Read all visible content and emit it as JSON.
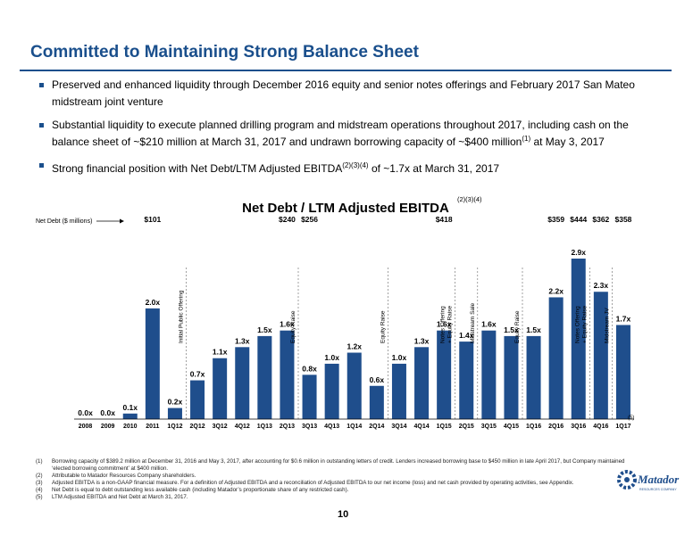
{
  "title": "Committed to Maintaining Strong Balance Sheet",
  "bullets": [
    {
      "text": "Preserved and enhanced liquidity through December 2016 equity and senior notes offerings and February 2017 San Mateo midstream joint venture",
      "sup": "",
      "tail": ""
    },
    {
      "text": "Substantial liquidity to execute planned drilling program and midstream operations throughout 2017, including cash on the balance sheet of ~$210 million at March 31, 2017 and undrawn borrowing capacity of ~$400 million",
      "sup": "(1)",
      "tail": " at May 3, 2017"
    },
    {
      "text": "Strong financial position with Net Debt/LTM Adjusted EBITDA",
      "sup": "(2)(3)(4)",
      "tail": " of ~1.7x at March 31, 2017"
    }
  ],
  "chart_data": {
    "type": "bar",
    "title": "Net Debt / LTM Adjusted EBITDA",
    "title_sup": "(2)(3)(4)",
    "net_debt_label": "Net Debt ($ millions)",
    "categories": [
      "2008",
      "2009",
      "2010",
      "2011",
      "1Q12",
      "2Q12",
      "3Q12",
      "4Q12",
      "1Q13",
      "2Q13",
      "3Q13",
      "4Q13",
      "1Q14",
      "2Q14",
      "3Q14",
      "4Q14",
      "1Q15",
      "2Q15",
      "3Q15",
      "4Q15",
      "1Q16",
      "2Q16",
      "3Q16",
      "4Q16",
      "1Q17"
    ],
    "values": [
      0.0,
      0.0,
      0.1,
      2.0,
      0.2,
      0.7,
      1.1,
      1.3,
      1.5,
      1.6,
      0.8,
      1.0,
      1.2,
      0.6,
      1.0,
      1.3,
      1.6,
      1.4,
      1.6,
      1.5,
      1.5,
      2.2,
      2.9,
      2.3,
      1.7
    ],
    "value_labels": [
      "0.0x",
      "0.0x",
      "0.1x",
      "2.0x",
      "0.2x",
      "0.7x",
      "1.1x",
      "1.3x",
      "1.5x",
      "1.6x",
      "0.8x",
      "1.0x",
      "1.2x",
      "0.6x",
      "1.0x",
      "1.3x",
      "1.6x",
      "1.4x",
      "1.6x",
      "1.5x",
      "1.5x",
      "2.2x",
      "2.9x",
      "2.3x",
      "1.7x"
    ],
    "net_debt": [
      {
        "category": "2011",
        "label": "$101"
      },
      {
        "category": "2Q13",
        "label": "$240"
      },
      {
        "category": "3Q13",
        "label": "$256"
      },
      {
        "category": "1Q15",
        "label": "$418"
      },
      {
        "category": "2Q16",
        "label": "$359"
      },
      {
        "category": "3Q16",
        "label": "$444"
      },
      {
        "category": "4Q16",
        "label": "$362"
      },
      {
        "category": "1Q17",
        "label": "$358"
      }
    ],
    "annotations": [
      {
        "after": "1Q12",
        "text": [
          "Initial Public Offering"
        ]
      },
      {
        "after": "2Q13",
        "text": [
          "Equity Raise"
        ]
      },
      {
        "after": "2Q14",
        "text": [
          "Equity Raise"
        ]
      },
      {
        "after": "1Q15",
        "text": [
          "Notes Offering",
          "+ Equity Raise"
        ]
      },
      {
        "after": "2Q15",
        "text": [
          "Midstream Sale"
        ]
      },
      {
        "after": "4Q15",
        "text": [
          "Equity Raise"
        ]
      },
      {
        "after": "3Q16",
        "text": [
          "Notes Offering",
          "+ Equity Raise"
        ]
      },
      {
        "after": "4Q16",
        "text": [
          "Midstream JV"
        ]
      }
    ],
    "last_bar_footnote": "(5)",
    "ylim": [
      0,
      3.0
    ],
    "bar_color": "#1f4e8c",
    "grid": false
  },
  "footnotes": [
    {
      "num": "(1)",
      "text": "Borrowing capacity of $389.2 million at December 31, 2016 and May 3, 2017, after accounting for $0.6 million in outstanding letters of credit. Lenders increased borrowing base to $450 million in late April 2017, but Company maintained ‘elected borrowing commitment’ at $400 million."
    },
    {
      "num": "(2)",
      "text": "Attributable to Matador Resources Company shareholders."
    },
    {
      "num": "(3)",
      "text": "Adjusted EBITDA is a non-GAAP financial measure. For a definition of Adjusted EBITDA and a reconciliation of Adjusted EBITDA to our net income (loss) and net cash provided by operating activities, see Appendix."
    },
    {
      "num": "(4)",
      "text": "Net Debt is equal to debt outstanding less available cash (including Matador’s proportionate share of any restricted cash)."
    },
    {
      "num": "(5)",
      "text": "LTM Adjusted EBITDA and Net Debt at March 31, 2017."
    }
  ],
  "page_number": "10",
  "logo": {
    "text": "Matador",
    "subtext": "RESOURCES COMPANY",
    "color": "#1f4e8c"
  }
}
